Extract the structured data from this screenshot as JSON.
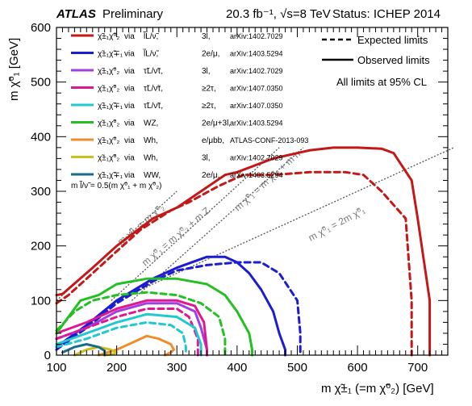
{
  "header": {
    "atlas": "ATLAS",
    "preliminary": "Preliminary",
    "lumi": "20.3 fb⁻¹, √s=8 TeV",
    "status": "Status: ICHEP 2014"
  },
  "chart_data": {
    "type": "line",
    "xlabel": "m χ̃±₁ (=m χ̃⁰₂) [GeV]",
    "ylabel": "m χ̃⁰₁ [GeV]",
    "xlim": [
      100,
      750
    ],
    "ylim": [
      0,
      600
    ],
    "xticks": [
      "100",
      "200",
      "300",
      "400",
      "500",
      "600",
      "700"
    ],
    "yticks": [
      "0",
      "100",
      "200",
      "300",
      "400",
      "500",
      "600"
    ],
    "grid": false,
    "style_legend": {
      "expected": "Expected limits",
      "observed": "Observed limits",
      "cl_note": "All limits at 95% CL",
      "placement": "top-right"
    },
    "kinematic_note": "m l̃/ν̃ = 0.5(m χ̃⁰₁ + m χ̃⁰₂)",
    "diagonals": [
      {
        "label": "m χ̃⁰₁ = m χ̃⁰₂",
        "x": [
          100,
          300
        ],
        "y": [
          100,
          300
        ]
      },
      {
        "label": "m χ̃⁰₁ = m χ̃⁰₂ + m Z",
        "x": [
          191,
          470
        ],
        "y": [
          100,
          380
        ]
      },
      {
        "label": "m χ̃⁰₁ = m χ̃⁰₂ + m h",
        "x": [
          225,
          510
        ],
        "y": [
          100,
          380
        ]
      },
      {
        "label": "m χ̃⁰₁ = 2m χ̃⁰₁",
        "x": [
          200,
          760
        ],
        "y": [
          100,
          380
        ]
      }
    ],
    "series": [
      {
        "name": "χ̃±₁χ̃⁰₂ via l̃L/ν̃, 3l, arXiv:1402.7029",
        "color": "#c41818",
        "dashed": false,
        "x": [
          100,
          110,
          160,
          200,
          260,
          300,
          340,
          380,
          400,
          460,
          520,
          560,
          600,
          640,
          660,
          690,
          700,
          720,
          720
        ],
        "y": [
          110,
          112,
          160,
          200,
          250,
          270,
          300,
          330,
          335,
          360,
          375,
          380,
          380,
          378,
          370,
          320,
          250,
          100,
          0
        ]
      },
      {
        "name": "χ̃±₁χ̃⁰₂ via l̃L/ν̃, 3l, arXiv:1402.7029",
        "color": "#c41818",
        "dashed": true,
        "x": [
          100,
          120,
          160,
          200,
          240,
          290,
          320,
          370,
          410,
          460,
          520,
          580,
          610,
          640,
          680,
          690,
          690
        ],
        "y": [
          95,
          110,
          150,
          190,
          230,
          265,
          280,
          310,
          330,
          330,
          335,
          335,
          330,
          300,
          250,
          100,
          0
        ]
      },
      {
        "name": "χ̃±₁χ̃∓₁ via l̃L/ν̃, 2e/μ, arXiv:1403.5294",
        "color": "#1c1cd0",
        "dashed": false,
        "x": [
          100,
          150,
          200,
          260,
          300,
          350,
          380,
          400,
          420,
          440,
          460,
          470,
          480,
          480
        ],
        "y": [
          15,
          55,
          100,
          140,
          160,
          180,
          180,
          170,
          150,
          120,
          80,
          40,
          10,
          0
        ]
      },
      {
        "name": "χ̃±₁χ̃∓₁ via l̃L/ν̃, 2e/μ, arXiv:1403.5294",
        "color": "#1c1cd0",
        "dashed": true,
        "x": [
          100,
          150,
          200,
          260,
          300,
          350,
          400,
          440,
          470,
          500,
          505,
          505
        ],
        "y": [
          10,
          50,
          95,
          135,
          155,
          165,
          170,
          170,
          150,
          100,
          40,
          0
        ]
      },
      {
        "name": "χ̃±₁χ̃⁰₂ via τ̃L/ν̃τ, 3l, arXiv:1402.7029",
        "color": "#a040e0",
        "dashed": false,
        "x": [
          100,
          150,
          200,
          250,
          300,
          330,
          340,
          350,
          350
        ],
        "y": [
          30,
          50,
          80,
          95,
          95,
          80,
          50,
          10,
          0
        ]
      },
      {
        "name": "χ̃±₁χ̃⁰₂ via τ̃L/ν̃τ, ≥2τ, arXiv:1407.0350",
        "color": "#e01890",
        "dashed": false,
        "x": [
          100,
          150,
          200,
          250,
          300,
          330,
          345,
          350,
          350
        ],
        "y": [
          40,
          60,
          85,
          100,
          100,
          90,
          60,
          10,
          0
        ]
      },
      {
        "name": "χ̃±₁χ̃⁰₂ via τ̃L/ν̃τ, ≥2τ, arXiv:1407.0350",
        "color": "#e01890",
        "dashed": true,
        "x": [
          100,
          150,
          200,
          250,
          300,
          320,
          335,
          335
        ],
        "y": [
          30,
          50,
          70,
          85,
          85,
          70,
          30,
          0
        ]
      },
      {
        "name": "χ̃±₁χ̃∓₁ via τ̃L/ν̃τ, ≥2τ, arXiv:1407.0350",
        "color": "#20c8d0",
        "dashed": false,
        "x": [
          100,
          150,
          200,
          250,
          300,
          330,
          340,
          340
        ],
        "y": [
          20,
          40,
          60,
          75,
          70,
          50,
          20,
          0
        ]
      },
      {
        "name": "χ̃±₁χ̃∓₁ via τ̃L/ν̃τ, ≥2τ, arXiv:1407.0350",
        "color": "#20c8d0",
        "dashed": true,
        "x": [
          100,
          150,
          200,
          250,
          290,
          310,
          315,
          315
        ],
        "y": [
          15,
          30,
          50,
          60,
          55,
          40,
          15,
          0
        ]
      },
      {
        "name": "χ̃±₁χ̃⁰₂ via WZ, 2e/μ+3l, arXiv:1403.5294",
        "color": "#22c022",
        "dashed": false,
        "x": [
          100,
          140,
          170,
          200,
          250,
          300,
          350,
          380,
          400,
          420,
          425,
          425
        ],
        "y": [
          40,
          100,
          110,
          130,
          140,
          140,
          130,
          110,
          80,
          40,
          10,
          0
        ]
      },
      {
        "name": "χ̃±₁χ̃⁰₂ via WZ, 2e/μ+3l, arXiv:1403.5294",
        "color": "#22c022",
        "dashed": true,
        "x": [
          100,
          130,
          160,
          200,
          250,
          300,
          340,
          370,
          380,
          380
        ],
        "y": [
          45,
          80,
          100,
          110,
          115,
          110,
          95,
          70,
          30,
          0
        ]
      },
      {
        "name": "χ̃±₁χ̃⁰₂ via Wh, e/μbb, ATLAS-CONF-2013-093",
        "color": "#f08c2c",
        "dashed": false,
        "x": [
          170,
          200,
          230,
          250,
          270,
          290,
          295,
          290,
          280
        ],
        "y": [
          0,
          10,
          25,
          35,
          30,
          20,
          10,
          5,
          0
        ]
      },
      {
        "name": "χ̃±₁χ̃⁰₂ via Wh, 3l, arXiv:1402.7029",
        "color": "#c8c020",
        "dashed": false,
        "x": [
          130,
          150,
          170,
          190,
          200,
          195,
          180
        ],
        "y": [
          0,
          10,
          15,
          10,
          5,
          2,
          0
        ]
      },
      {
        "name": "χ̃±₁χ̃∓₁ via WW, 2e/μ, arXiv:1403.5294",
        "color": "#1a6a8a",
        "dashed": false,
        "x": [
          110,
          130,
          150,
          170,
          180,
          180
        ],
        "y": [
          5,
          15,
          20,
          15,
          8,
          0
        ]
      }
    ]
  },
  "legend_entries": [
    {
      "proc": "χ̃±₁χ̃⁰₂",
      "via": "via",
      "slep": "l̃L/ν̃,",
      "chan": "3l,",
      "ref": "arXiv:1402.7029",
      "color": "#c41818"
    },
    {
      "proc": "χ̃±₁χ̃∓₁",
      "via": "via",
      "slep": "l̃L/ν̃,",
      "chan": "2e/μ,",
      "ref": "arXiv:1403.5294",
      "color": "#1c1cd0"
    },
    {
      "proc": "χ̃±₁χ̃⁰₂",
      "via": "via",
      "slep": "τ̃L/ν̃τ,",
      "chan": "3l,",
      "ref": "arXiv:1402.7029",
      "color": "#a040e0"
    },
    {
      "proc": "χ̃±₁χ̃⁰₂",
      "via": "via",
      "slep": "τ̃L/ν̃τ,",
      "chan": "≥2τ,",
      "ref": "arXiv:1407.0350",
      "color": "#e01890"
    },
    {
      "proc": "χ̃±₁χ̃∓₁",
      "via": "via",
      "slep": "τ̃L/ν̃τ,",
      "chan": "≥2τ,",
      "ref": "arXiv:1407.0350",
      "color": "#20c8d0"
    },
    {
      "proc": "χ̃±₁χ̃⁰₂",
      "via": "via",
      "slep": "WZ,",
      "chan": "2e/μ+3l,",
      "ref": "arXiv:1403.5294",
      "color": "#22c022"
    },
    {
      "proc": "χ̃±₁χ̃⁰₂",
      "via": "via",
      "slep": "Wh,",
      "chan": "e/μbb,",
      "ref": "ATLAS-CONF-2013-093",
      "color": "#f08c2c"
    },
    {
      "proc": "χ̃±₁χ̃⁰₂",
      "via": "via",
      "slep": "Wh,",
      "chan": "3l,",
      "ref": "arXiv:1402.7029",
      "color": "#c8c020"
    },
    {
      "proc": "χ̃±₁χ̃∓₁",
      "via": "via",
      "slep": "WW,",
      "chan": "2e/μ,",
      "ref": "arXiv:1403.5294",
      "color": "#1a6a8a"
    }
  ]
}
